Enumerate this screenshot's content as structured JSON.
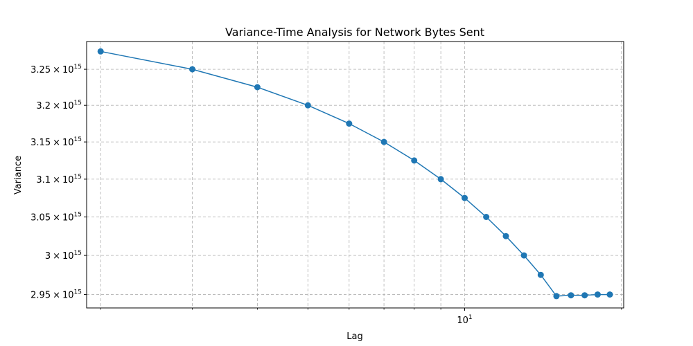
{
  "chart_data": {
    "type": "line",
    "title": "Variance-Time Analysis for Network Bytes Sent",
    "xlabel": "Lag",
    "ylabel": "Variance",
    "xscale": "log",
    "yscale": "log",
    "grid": true,
    "series_color": "#1f77b4",
    "marker": "circle",
    "x": [
      2,
      3,
      4,
      5,
      6,
      7,
      8,
      9,
      10,
      11,
      12,
      13,
      14,
      15,
      16,
      17,
      18,
      19
    ],
    "y": [
      3275000000000000.0,
      3250000000000000.0,
      3225000000000000.0,
      3200000000000000.0,
      3175000000000000.0,
      3150000000000000.0,
      3125000000000000.0,
      3100000000000000.0,
      3075000000000000.0,
      3050000000000000.0,
      3025000000000000.0,
      3000000000000000.0,
      2975000000000000.0,
      2948000000000000.0,
      2949000000000000.0,
      2949000000000000.0,
      2950000000000000.0,
      2950000000000000.0
    ],
    "xlim": [
      1.88,
      20.2
    ],
    "ylim": [
      2933000000000000.0,
      3289000000000000.0
    ],
    "x_major_ticks": [
      {
        "value": 10,
        "base": "10",
        "exp": "1"
      }
    ],
    "x_minor_ticks": [
      2,
      3,
      4,
      5,
      6,
      7,
      8,
      9,
      20
    ],
    "y_ticks": [
      {
        "value": 2950000000000000.0,
        "mantissa": "2.95",
        "base": "10",
        "exp": "15"
      },
      {
        "value": 3000000000000000.0,
        "mantissa": "3",
        "base": "10",
        "exp": "15"
      },
      {
        "value": 3050000000000000.0,
        "mantissa": "3.05",
        "base": "10",
        "exp": "15"
      },
      {
        "value": 3100000000000000.0,
        "mantissa": "3.1",
        "base": "10",
        "exp": "15"
      },
      {
        "value": 3150000000000000.0,
        "mantissa": "3.15",
        "base": "10",
        "exp": "15"
      },
      {
        "value": 3200000000000000.0,
        "mantissa": "3.2",
        "base": "10",
        "exp": "15"
      },
      {
        "value": 3250000000000000.0,
        "mantissa": "3.25",
        "base": "10",
        "exp": "15"
      }
    ],
    "times_symbol": "×"
  }
}
